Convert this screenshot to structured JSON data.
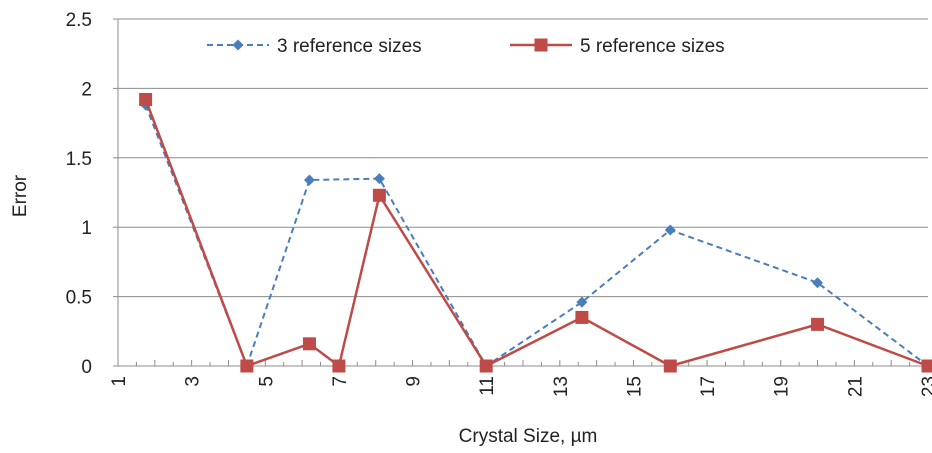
{
  "chart_data": {
    "type": "line",
    "title": "",
    "xlabel": "Crystal Size, µm",
    "ylabel": "Error",
    "xlim": [
      1,
      23
    ],
    "ylim": [
      0,
      2.5
    ],
    "x_ticks": [
      "1",
      "3",
      "5",
      "7",
      "9",
      "11",
      "13",
      "15",
      "17",
      "19",
      "21",
      "23"
    ],
    "y_ticks": [
      "0",
      "0.5",
      "1",
      "1.5",
      "2",
      "2.5"
    ],
    "grid": "horizontal",
    "legend_position": "top-center",
    "series": [
      {
        "name": "3 reference sizes",
        "color": "#4a7ebb",
        "line_style": "dashed",
        "marker": "diamond",
        "x": [
          1.75,
          4.5,
          6.2,
          8.1,
          11.0,
          13.6,
          16.0,
          20.0,
          23.0
        ],
        "y": [
          1.88,
          0.0,
          1.34,
          1.35,
          0.0,
          0.46,
          0.98,
          0.6,
          0.0
        ]
      },
      {
        "name": "5 reference sizes",
        "color": "#be4b48",
        "line_style": "solid",
        "marker": "square",
        "x": [
          1.75,
          4.5,
          6.2,
          7.0,
          8.1,
          11.0,
          13.6,
          16.0,
          20.0,
          23.0
        ],
        "y": [
          1.92,
          0.0,
          0.16,
          0.0,
          1.23,
          0.0,
          0.35,
          0.0,
          0.3,
          0.0
        ]
      }
    ]
  }
}
